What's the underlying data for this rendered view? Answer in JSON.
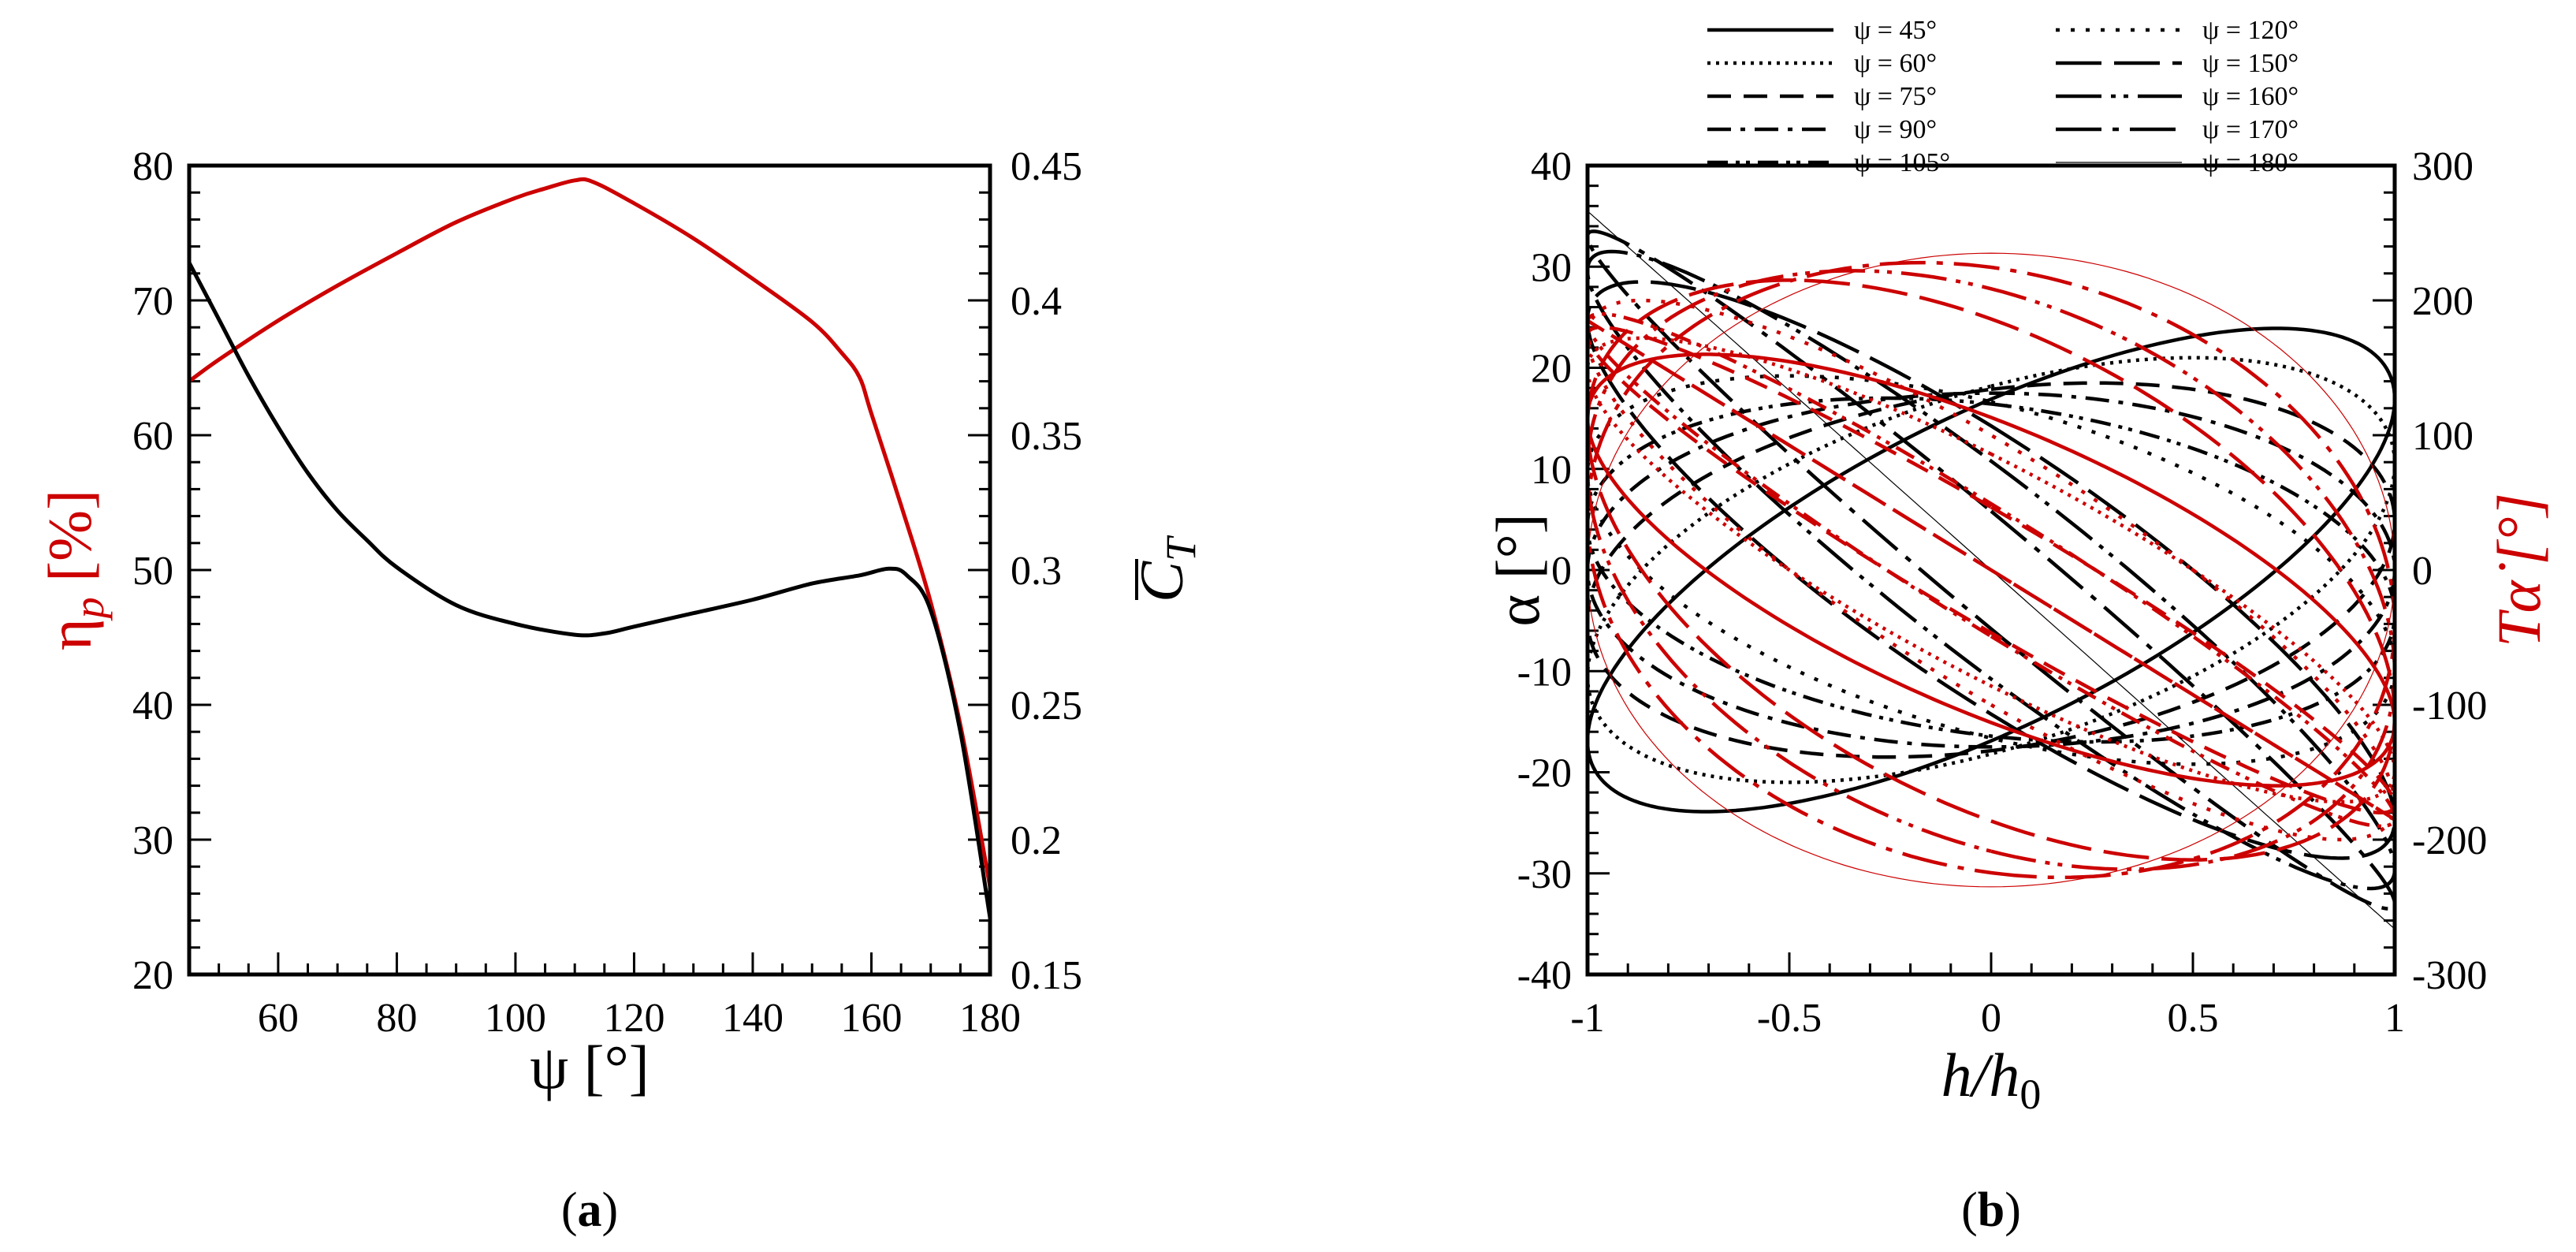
{
  "figure_labels": {
    "a": "a",
    "b": "b"
  },
  "colors": {
    "red": "#cc0000",
    "black": "#000000"
  },
  "chart_data": [
    {
      "id": "a",
      "type": "line",
      "xlabel": "ψ [°]",
      "ylabel_left": {
        "base": "η",
        "sub": "p",
        "unit": " [%]"
      },
      "ylabel_right": {
        "base": "C",
        "sub": "T",
        "overbar": true
      },
      "xlim": [
        45,
        180
      ],
      "ylim_left": [
        20,
        80
      ],
      "ylim_right": [
        0.15,
        0.45
      ],
      "xticks": [
        60,
        80,
        100,
        120,
        140,
        160,
        180
      ],
      "yticks_left": [
        20,
        30,
        40,
        50,
        60,
        70,
        80
      ],
      "yticks_right": [
        "0.15",
        "0.2",
        "0.25",
        "0.3",
        "0.35",
        "0.4",
        "0.45"
      ],
      "series": [
        {
          "axis": "left",
          "color": "#cc0000",
          "x": [
            45,
            50,
            60,
            70,
            80,
            90,
            100,
            105,
            110,
            113,
            120,
            130,
            140,
            150,
            155,
            158,
            160,
            165,
            170,
            175,
            180
          ],
          "y": [
            64,
            65.6,
            68.5,
            71.1,
            73.5,
            75.8,
            77.6,
            78.3,
            78.9,
            78.8,
            77.2,
            74.6,
            71.6,
            68.4,
            66.1,
            64.3,
            61.6,
            54.8,
            47.6,
            38.5,
            26.5
          ]
        },
        {
          "axis": "right",
          "color": "#000000",
          "x": [
            45,
            50,
            55,
            60,
            65,
            70,
            75,
            80,
            90,
            100,
            110,
            115,
            120,
            130,
            140,
            150,
            158,
            163,
            166,
            170,
            175,
            180
          ],
          "y": [
            0.414,
            0.393,
            0.372,
            0.353,
            0.336,
            0.322,
            0.311,
            0.301,
            0.287,
            0.28,
            0.276,
            0.2765,
            0.279,
            0.284,
            0.289,
            0.295,
            0.298,
            0.3005,
            0.298,
            0.285,
            0.24,
            0.171
          ]
        }
      ]
    },
    {
      "id": "b",
      "type": "line",
      "xlabel": {
        "base": "h/h",
        "sub": "0"
      },
      "ylabel_left": "α [°]",
      "ylabel_right": "Tα̇ [°]",
      "xlim": [
        -1,
        1
      ],
      "ylim_left": [
        -40,
        40
      ],
      "ylim_right": [
        -300,
        300
      ],
      "xticks": [
        "-1",
        "-0.5",
        "0",
        "0.5",
        "1"
      ],
      "yticks_left": [
        "-40",
        "-30",
        "-20",
        "-10",
        "0",
        "10",
        "20",
        "30",
        "40"
      ],
      "yticks_right": [
        "-300",
        "-200",
        "-100",
        "0",
        "100",
        "200",
        "300"
      ],
      "legend_position": "top",
      "legend": [
        {
          "label": "ψ = 45°",
          "dash": "solid",
          "width": 4.5
        },
        {
          "label": "ψ = 60°",
          "dash": "dotted",
          "width": 4.5
        },
        {
          "label": "ψ = 75°",
          "dash": "dashed",
          "width": 4.5
        },
        {
          "label": "ψ = 90°",
          "dash": "dashdot",
          "width": 4.5
        },
        {
          "label": "ψ = 105°",
          "dash": "dashdotdot",
          "width": 4.5
        },
        {
          "label": "ψ = 120°",
          "dash": "dotted-sparse",
          "width": 4.5
        },
        {
          "label": "ψ = 150°",
          "dash": "longdash",
          "width": 4.5
        },
        {
          "label": "ψ = 160°",
          "dash": "longdashdotdot",
          "width": 4.5
        },
        {
          "label": "ψ = 170°",
          "dash": "longdashdot",
          "width": 4.5
        },
        {
          "label": "ψ = 180°",
          "dash": "solid-thin",
          "width": 1.2
        }
      ],
      "curves": [
        {
          "psi": 45,
          "alpha_amp": 23.9,
          "rate_amp": 160,
          "phase_deg": 45,
          "rate_phase_deg": 135,
          "dash": "solid",
          "width": 4.5
        },
        {
          "psi": 60,
          "alpha_amp": 21,
          "rate_amp": 172,
          "phase_deg": 60,
          "rate_phase_deg": 150,
          "dash": "dotted",
          "width": 4.5
        },
        {
          "psi": 75,
          "alpha_amp": 18.5,
          "rate_amp": 180,
          "phase_deg": 75,
          "rate_phase_deg": 165,
          "dash": "dashed",
          "width": 4.5
        },
        {
          "psi": 90,
          "alpha_amp": 17.5,
          "rate_amp": 185,
          "phase_deg": 90,
          "rate_phase_deg": 180,
          "dash": "dashdot",
          "width": 4.5
        },
        {
          "psi": 105,
          "alpha_amp": 17,
          "rate_amp": 190,
          "phase_deg": 105,
          "rate_phase_deg": 195,
          "dash": "dashdotdot",
          "width": 4.5
        },
        {
          "psi": 120,
          "alpha_amp": 19.2,
          "rate_amp": 200,
          "phase_deg": 120,
          "rate_phase_deg": 210,
          "dash": "dotted-sparse",
          "width": 4.5
        },
        {
          "psi": 150,
          "alpha_amp": 28.5,
          "rate_amp": 215,
          "phase_deg": 150,
          "rate_phase_deg": 240,
          "dash": "longdash",
          "width": 4.5
        },
        {
          "psi": 160,
          "alpha_amp": 31.5,
          "rate_amp": 222,
          "phase_deg": 160,
          "rate_phase_deg": 250,
          "dash": "longdashdotdot",
          "width": 4.5
        },
        {
          "psi": 170,
          "alpha_amp": 33.5,
          "rate_amp": 228,
          "phase_deg": 170,
          "rate_phase_deg": 260,
          "dash": "longdashdot",
          "width": 4.5
        },
        {
          "psi": 180,
          "alpha_amp": 35.5,
          "rate_amp": 235,
          "phase_deg": 180,
          "rate_phase_deg": 270,
          "dash": "solid-thin",
          "width": 1.2
        }
      ]
    }
  ]
}
